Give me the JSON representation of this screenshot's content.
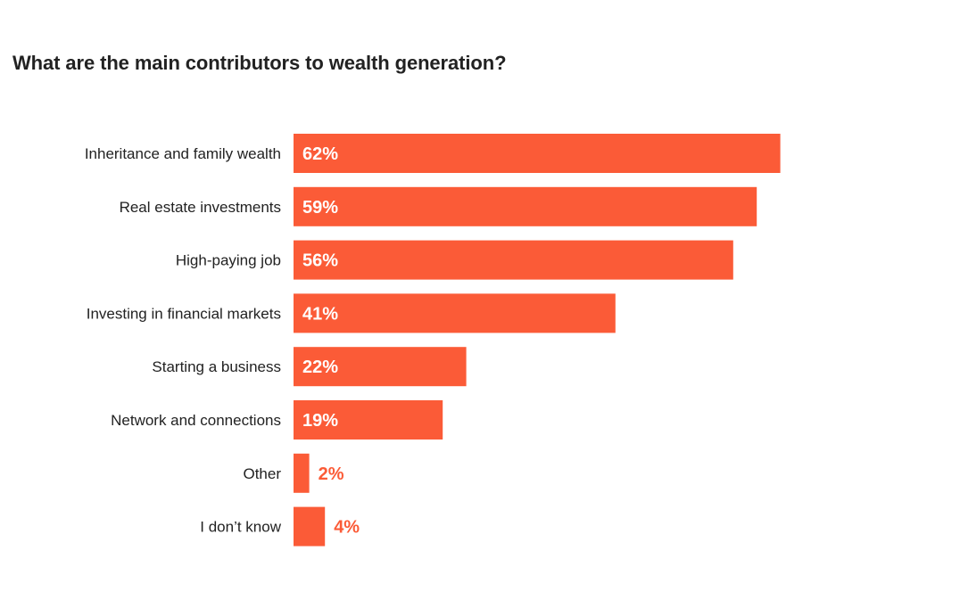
{
  "chart_data": {
    "type": "bar",
    "orientation": "horizontal",
    "title": "What are the main contributors to wealth generation?",
    "categories": [
      "Inheritance and family wealth",
      "Real estate investments",
      "High-paying job",
      "Investing in financial markets",
      "Starting a business",
      "Network and connections",
      "Other",
      "I don’t know"
    ],
    "values": [
      62,
      59,
      56,
      41,
      22,
      19,
      2,
      4
    ],
    "value_labels": [
      "62%",
      "59%",
      "56%",
      "41%",
      "22%",
      "19%",
      "2%",
      "4%"
    ],
    "unit": "%",
    "xlim": [
      0,
      70
    ],
    "grid": false,
    "legend": "none",
    "colors": {
      "bar": "#FB5B37",
      "label_inside": "#FFFFFF",
      "label_outside": "#FB5B37",
      "text": "#222222"
    }
  }
}
